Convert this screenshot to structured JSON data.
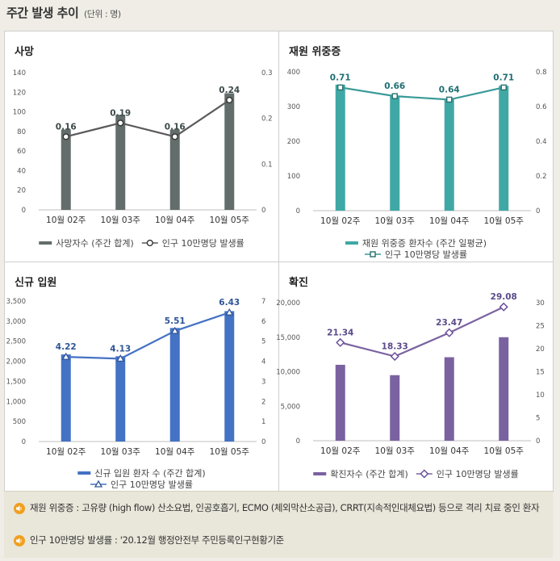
{
  "header": {
    "title": "주간 발생 추이",
    "unit": "(단위 : 명)"
  },
  "charts": [
    {
      "id": "deaths",
      "title": "사망",
      "color": "#636d6b",
      "lineColor": "#5a5a5a",
      "marker": "circle",
      "labelColor": "#3d4a4a",
      "chart_data": {
        "type": "bar",
        "categories": [
          "10월 02주",
          "10월 03주",
          "10월 04주",
          "10월 05주"
        ],
        "series": [
          {
            "name": "사망자수 (주간 합계)",
            "type": "bar",
            "axis": "left",
            "values": [
              82,
              97,
              82,
              119
            ]
          },
          {
            "name": "인구 10만명당 발생률",
            "type": "line",
            "axis": "right",
            "values": [
              0.16,
              0.19,
              0.16,
              0.24
            ],
            "labels": [
              "0.16",
              "0.19",
              "0.16",
              "0.24"
            ]
          }
        ],
        "left_axis": {
          "min": 0,
          "max": 140,
          "ticks": [
            "0",
            "20",
            "40",
            "60",
            "80",
            "100",
            "120",
            "140"
          ]
        },
        "right_axis": {
          "min": 0,
          "max": 0.3,
          "ticks": [
            "0",
            "0.1",
            "0.2",
            "0.3"
          ]
        }
      }
    },
    {
      "id": "severe",
      "title": "재원 위중증",
      "color": "#3fa8a4",
      "lineColor": "#3a9a98",
      "marker": "square",
      "labelColor": "#1f6f72",
      "chart_data": {
        "type": "bar",
        "categories": [
          "10월 02주",
          "10월 03주",
          "10월 04주",
          "10월 05주"
        ],
        "series": [
          {
            "name": "재원 위중증 환자수 (주간 일평균)",
            "type": "bar",
            "axis": "left",
            "values": [
              363,
              330,
              322,
              360
            ]
          },
          {
            "name": "인구 10만명당 발생률",
            "type": "line",
            "axis": "right",
            "values": [
              0.71,
              0.66,
              0.64,
              0.71
            ],
            "labels": [
              "0.71",
              "0.66",
              "0.64",
              "0.71"
            ]
          }
        ],
        "left_axis": {
          "min": 0,
          "max": 400,
          "ticks": [
            "0",
            "100",
            "200",
            "300",
            "400"
          ]
        },
        "right_axis": {
          "min": 0,
          "max": 0.8,
          "ticks": [
            "0",
            "0.2",
            "0.4",
            "0.6",
            "0.8"
          ]
        }
      }
    },
    {
      "id": "admissions",
      "title": "신규 입원",
      "color": "#4472c4",
      "lineColor": "#4472c4",
      "marker": "triangle",
      "labelColor": "#2f5597",
      "chart_data": {
        "type": "bar",
        "categories": [
          "10월 02주",
          "10월 03주",
          "10월 04주",
          "10월 05주"
        ],
        "series": [
          {
            "name": "신규 입원 환자 수 (주간 합계)",
            "type": "bar",
            "axis": "left",
            "values": [
              2170,
              2125,
              2830,
              3250
            ]
          },
          {
            "name": "인구 10만명당 발생률",
            "type": "line",
            "axis": "right",
            "values": [
              4.22,
              4.13,
              5.51,
              6.43
            ],
            "labels": [
              "4.22",
              "4.13",
              "5.51",
              "6.43"
            ]
          }
        ],
        "left_axis": {
          "min": 0,
          "max": 3500,
          "ticks": [
            "0",
            "500",
            "1,000",
            "1,500",
            "2,000",
            "2,500",
            "3,000",
            "3,500"
          ]
        },
        "right_axis": {
          "min": 0,
          "max": 7,
          "ticks": [
            "0",
            "1",
            "2",
            "3",
            "4",
            "5",
            "6",
            "7"
          ]
        }
      }
    },
    {
      "id": "confirmed",
      "title": "확진",
      "color": "#7a62a0",
      "lineColor": "#7a62a0",
      "marker": "diamond",
      "labelColor": "#5b4a8a",
      "chart_data": {
        "type": "bar",
        "categories": [
          "10월 02주",
          "10월 03주",
          "10월 04주",
          "10월 05주"
        ],
        "series": [
          {
            "name": "확진자수 (주간 합계)",
            "type": "bar",
            "axis": "left",
            "values": [
              11000,
              9500,
              12100,
              15000
            ]
          },
          {
            "name": "인구 10만명당 발생률",
            "type": "line",
            "axis": "right",
            "values": [
              21.34,
              18.33,
              23.47,
              29.08
            ],
            "labels": [
              "21.34",
              "18.33",
              "23.47",
              "29.08"
            ]
          }
        ],
        "left_axis": {
          "min": 0,
          "max": 20000,
          "ticks": [
            "0",
            "5,000",
            "10,000",
            "15,000",
            "20,000"
          ]
        },
        "right_axis": {
          "min": 0,
          "max": 30,
          "ticks": [
            "0",
            "5",
            "10",
            "15",
            "20",
            "25",
            "30"
          ]
        }
      }
    }
  ],
  "notes": [
    {
      "icon": "speaker-icon",
      "text": "재원 위중증 : 고유량 (high flow) 산소요법, 인공호흡기, ECMO (체외막산소공급), CRRT(지속적인대체요법) 등으로 격리 치료 중인 환자"
    },
    {
      "icon": "speaker-icon",
      "text": "인구 10만명당 발생률 : '20.12월 행정안전부 주민등록인구현황기준"
    }
  ]
}
